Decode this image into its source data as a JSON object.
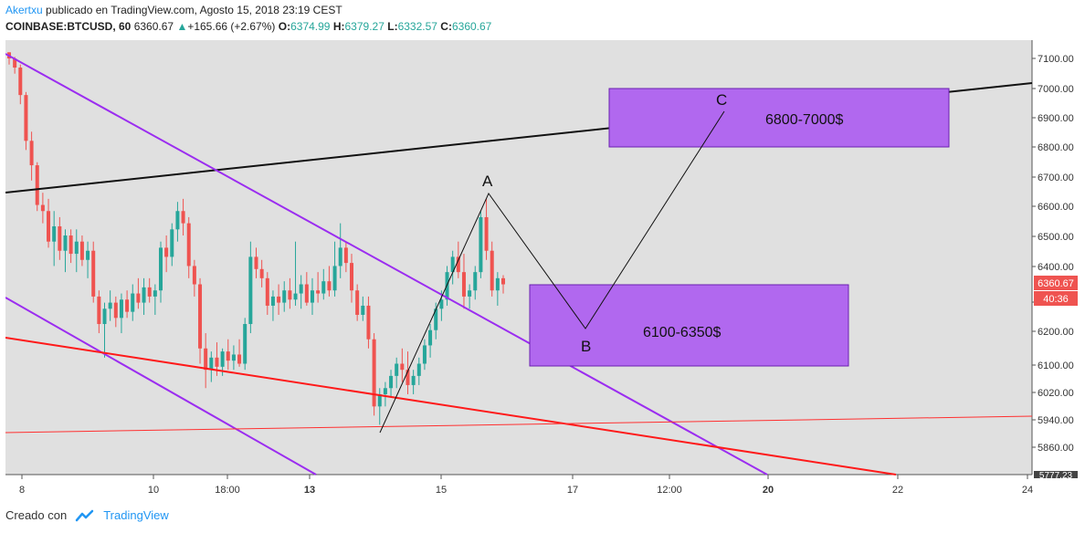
{
  "header": {
    "author": "Akertxu",
    "published": " publicado en TradingView.com, Agosto 15, 2018 23:19 CEST",
    "symbol": "COINBASE:BTCUSD, 60",
    "last": "6360.67",
    "change_icon": "up-triangle-icon",
    "change": "+165.66 (+2.67%)",
    "o_label": "O:",
    "o": "6374.99",
    "h_label": "H:",
    "h": "6379.27",
    "l_label": "L:",
    "l": "6332.57",
    "c_label": "C:",
    "c": "6360.67"
  },
  "footer": {
    "created_with": "Creado con",
    "brand": "TradingView",
    "logo_icon": "tradingview-cloud-icon"
  },
  "colors": {
    "up": "#26a69a",
    "down": "#ef5350",
    "plot_bg": "#e0e0e0",
    "zone": "#b168ef",
    "channel": "#9b2df0",
    "red_line": "#ff1a1a"
  },
  "chart_data": {
    "type": "candlestick",
    "y_ticks": [
      "7100.00",
      "7000.00",
      "6900.00",
      "6800.00",
      "6700.00",
      "6600.00",
      "6500.00",
      "6400.00",
      "6280.00",
      "6200.00",
      "6100.00",
      "6020.00",
      "5940.00",
      "5860.00"
    ],
    "y_range": [
      5770,
      7130
    ],
    "x_ticks": [
      "8",
      "10",
      "18:00",
      "13",
      "15",
      "17",
      "12:00",
      "20",
      "22",
      "24"
    ],
    "price_label": "6360.67",
    "countdown_label": "40:36",
    "bottom_cut_label": "5777.23",
    "annotations": {
      "wave_labels": [
        "A",
        "B",
        "C"
      ],
      "zone_upper": {
        "label": "6800-7000$",
        "price_low": 6800,
        "price_high": 7000
      },
      "zone_lower": {
        "label": "6100-6350$",
        "price_low": 6100,
        "price_high": 6350
      }
    },
    "candles": [
      [
        7120,
        7120,
        7080,
        7100
      ],
      [
        7100,
        7105,
        7050,
        7070
      ],
      [
        7070,
        7080,
        6950,
        6980
      ],
      [
        6980,
        6990,
        6800,
        6830
      ],
      [
        6830,
        6860,
        6700,
        6750
      ],
      [
        6750,
        6760,
        6600,
        6620
      ],
      [
        6620,
        6660,
        6560,
        6600
      ],
      [
        6600,
        6640,
        6480,
        6500
      ],
      [
        6500,
        6600,
        6420,
        6550
      ],
      [
        6550,
        6580,
        6440,
        6470
      ],
      [
        6470,
        6540,
        6400,
        6520
      ],
      [
        6520,
        6540,
        6430,
        6460
      ],
      [
        6460,
        6540,
        6400,
        6500
      ],
      [
        6500,
        6520,
        6420,
        6440
      ],
      [
        6440,
        6500,
        6380,
        6470
      ],
      [
        6470,
        6500,
        6300,
        6320
      ],
      [
        6320,
        6340,
        6200,
        6230
      ],
      [
        6230,
        6300,
        6120,
        6280
      ],
      [
        6280,
        6340,
        6240,
        6300
      ],
      [
        6300,
        6320,
        6220,
        6250
      ],
      [
        6250,
        6330,
        6200,
        6310
      ],
      [
        6310,
        6340,
        6250,
        6270
      ],
      [
        6270,
        6360,
        6240,
        6330
      ],
      [
        6330,
        6380,
        6280,
        6300
      ],
      [
        6300,
        6380,
        6260,
        6350
      ],
      [
        6350,
        6380,
        6300,
        6320
      ],
      [
        6320,
        6360,
        6260,
        6340
      ],
      [
        6340,
        6500,
        6300,
        6480
      ],
      [
        6480,
        6520,
        6400,
        6450
      ],
      [
        6450,
        6560,
        6420,
        6540
      ],
      [
        6540,
        6630,
        6500,
        6600
      ],
      [
        6600,
        6640,
        6520,
        6560
      ],
      [
        6560,
        6580,
        6380,
        6420
      ],
      [
        6420,
        6440,
        6320,
        6360
      ],
      [
        6360,
        6380,
        6100,
        6150
      ],
      [
        6150,
        6200,
        6020,
        6080
      ],
      [
        6080,
        6140,
        6040,
        6120
      ],
      [
        6120,
        6170,
        6060,
        6090
      ],
      [
        6090,
        6150,
        6060,
        6140
      ],
      [
        6140,
        6180,
        6080,
        6110
      ],
      [
        6110,
        6160,
        6080,
        6130
      ],
      [
        6130,
        6180,
        6090,
        6100
      ],
      [
        6100,
        6250,
        6080,
        6230
      ],
      [
        6230,
        6500,
        6200,
        6450
      ],
      [
        6450,
        6480,
        6380,
        6410
      ],
      [
        6410,
        6440,
        6350,
        6380
      ],
      [
        6380,
        6400,
        6260,
        6290
      ],
      [
        6290,
        6340,
        6240,
        6320
      ],
      [
        6320,
        6360,
        6260,
        6300
      ],
      [
        6300,
        6370,
        6270,
        6340
      ],
      [
        6340,
        6380,
        6280,
        6310
      ],
      [
        6310,
        6500,
        6290,
        6330
      ],
      [
        6330,
        6390,
        6280,
        6360
      ],
      [
        6360,
        6400,
        6290,
        6300
      ],
      [
        6300,
        6380,
        6260,
        6340
      ],
      [
        6340,
        6400,
        6300,
        6330
      ],
      [
        6330,
        6410,
        6310,
        6370
      ],
      [
        6370,
        6420,
        6320,
        6340
      ],
      [
        6340,
        6500,
        6320,
        6420
      ],
      [
        6420,
        6560,
        6380,
        6480
      ],
      [
        6480,
        6500,
        6400,
        6430
      ],
      [
        6430,
        6460,
        6300,
        6340
      ],
      [
        6340,
        6360,
        6240,
        6260
      ],
      [
        6260,
        6320,
        6240,
        6290
      ],
      [
        6290,
        6320,
        6150,
        6180
      ],
      [
        6180,
        6200,
        5930,
        5960
      ],
      [
        5960,
        6020,
        5900,
        6000
      ],
      [
        6000,
        6040,
        5960,
        6020
      ],
      [
        6020,
        6080,
        5990,
        6060
      ],
      [
        6060,
        6120,
        6020,
        6100
      ],
      [
        6100,
        6150,
        6040,
        6080
      ],
      [
        6080,
        6140,
        6000,
        6030
      ],
      [
        6030,
        6080,
        6000,
        6060
      ],
      [
        6060,
        6120,
        6030,
        6100
      ],
      [
        6100,
        6180,
        6080,
        6160
      ],
      [
        6160,
        6230,
        6120,
        6210
      ],
      [
        6210,
        6300,
        6180,
        6280
      ],
      [
        6280,
        6340,
        6240,
        6310
      ],
      [
        6310,
        6420,
        6290,
        6400
      ],
      [
        6400,
        6470,
        6360,
        6450
      ],
      [
        6450,
        6500,
        6380,
        6400
      ],
      [
        6400,
        6460,
        6280,
        6320
      ],
      [
        6320,
        6360,
        6280,
        6340
      ],
      [
        6340,
        6420,
        6310,
        6400
      ],
      [
        6400,
        6600,
        6380,
        6580
      ],
      [
        6580,
        6640,
        6440,
        6470
      ],
      [
        6470,
        6500,
        6320,
        6340
      ],
      [
        6340,
        6400,
        6290,
        6380
      ],
      [
        6380,
        6390,
        6330,
        6360
      ]
    ]
  }
}
